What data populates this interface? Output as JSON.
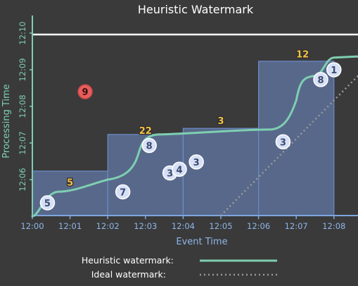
{
  "title": "Heuristic Watermark",
  "x_axis": {
    "label": "Event Time",
    "ticks": [
      "12:00",
      "12:01",
      "12:02",
      "12:03",
      "12:04",
      "12:05",
      "12:06",
      "12:07",
      "12:08"
    ]
  },
  "y_axis": {
    "label": "Processing Time",
    "ticks": [
      "12:06",
      "12:07",
      "12:08",
      "12:09",
      "12:10"
    ]
  },
  "legend": {
    "heuristic_label": "Heuristic watermark:",
    "ideal_label": "Ideal watermark:"
  },
  "colors": {
    "background": "#3a3a3a",
    "axis": "#7ea6e0",
    "axis_text": "#8fb6ea",
    "watermark": "#7ecfb1",
    "pane": "#5e7199",
    "pane_border": "#6a8cc8",
    "element_fill": "#d6e0f7",
    "element_text": "#3b4a6b",
    "aggregate": "#f5c242",
    "late": "#e85c5c",
    "title": "#ffffff"
  },
  "elements": [
    {
      "label": "5",
      "event_time": "12:00:24",
      "processing_time": "12:05:22"
    },
    {
      "label": "7",
      "event_time": "12:02:24",
      "processing_time": "12:05:40"
    },
    {
      "label": "9",
      "event_time": "12:01:24",
      "processing_time": "12:08:24"
    },
    {
      "label": "8",
      "event_time": "12:03:06",
      "processing_time": "12:06:56"
    },
    {
      "label": "3",
      "event_time": "12:03:39",
      "processing_time": "12:06:11"
    },
    {
      "label": "4",
      "event_time": "12:03:54",
      "processing_time": "12:06:17"
    },
    {
      "label": "3",
      "event_time": "12:04:21",
      "processing_time": "12:06:29"
    },
    {
      "label": "3",
      "event_time": "12:06:39",
      "processing_time": "12:07:02"
    },
    {
      "label": "8",
      "event_time": "12:07:39",
      "processing_time": "12:08:44"
    },
    {
      "label": "1",
      "event_time": "12:08:00",
      "processing_time": "12:09:00"
    }
  ],
  "windows": [
    {
      "start": "12:00",
      "end": "12:02",
      "result": "5",
      "fired_at": "12:06:14"
    },
    {
      "start": "12:02",
      "end": "12:04",
      "result": "22",
      "fired_at": "12:07:14"
    },
    {
      "start": "12:04",
      "end": "12:06",
      "result": "3",
      "fired_at": "12:07:24"
    },
    {
      "start": "12:06",
      "end": "12:08",
      "result": "12",
      "fired_at": "12:09:14"
    }
  ],
  "late_element": "9"
}
